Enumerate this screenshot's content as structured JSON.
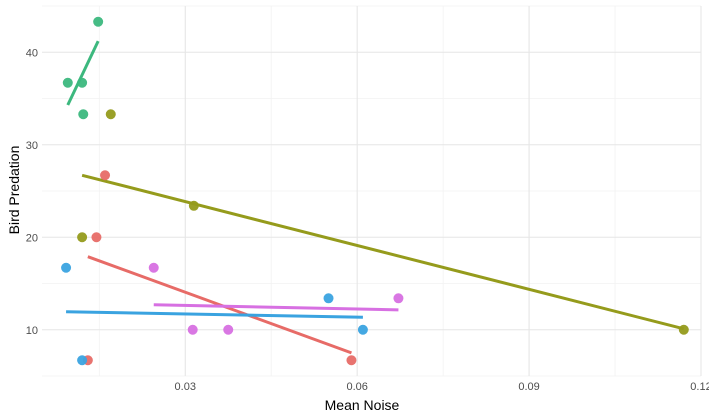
{
  "chart_data": {
    "type": "scatter",
    "xlabel": "Mean Noise",
    "ylabel": "Bird Predation",
    "xlim": [
      0.005,
      0.12
    ],
    "ylim": [
      5,
      45
    ],
    "x_ticks": [
      0.03,
      0.06,
      0.09,
      0.12
    ],
    "x_tick_labels": [
      "0.03",
      "0.06",
      "0.09",
      "0.12"
    ],
    "y_ticks": [
      10,
      20,
      30,
      40
    ],
    "y_tick_labels": [
      "10",
      "20",
      "30",
      "40"
    ],
    "grid": true,
    "legend": "none",
    "series": [
      {
        "color": "#e76b67",
        "points": [
          {
            "x": 0.016,
            "y": 26.7
          },
          {
            "x": 0.0145,
            "y": 20.0
          },
          {
            "x": 0.013,
            "y": 6.7
          },
          {
            "x": 0.059,
            "y": 6.7
          }
        ],
        "fit": {
          "x": [
            0.013,
            0.059
          ],
          "y": [
            17.9,
            7.5
          ]
        }
      },
      {
        "color": "#959b1c",
        "points": [
          {
            "x": 0.017,
            "y": 33.3
          },
          {
            "x": 0.012,
            "y": 20.0
          },
          {
            "x": 0.0315,
            "y": 23.4
          },
          {
            "x": 0.117,
            "y": 10.0
          }
        ],
        "fit": {
          "x": [
            0.012,
            0.117
          ],
          "y": [
            26.7,
            10.1
          ]
        }
      },
      {
        "color": "#3cb87e",
        "points": [
          {
            "x": 0.0148,
            "y": 43.3
          },
          {
            "x": 0.0095,
            "y": 36.7
          },
          {
            "x": 0.012,
            "y": 36.7
          },
          {
            "x": 0.0122,
            "y": 33.3
          }
        ],
        "fit": {
          "x": [
            0.0095,
            0.0148
          ],
          "y": [
            34.3,
            41.2
          ]
        }
      },
      {
        "color": "#3aa3e0",
        "points": [
          {
            "x": 0.0092,
            "y": 16.7
          },
          {
            "x": 0.012,
            "y": 6.7
          },
          {
            "x": 0.055,
            "y": 13.4
          },
          {
            "x": 0.061,
            "y": 10.0
          }
        ],
        "fit": {
          "x": [
            0.0092,
            0.061
          ],
          "y": [
            11.95,
            11.35
          ]
        }
      },
      {
        "color": "#d770e2",
        "points": [
          {
            "x": 0.0245,
            "y": 16.7
          },
          {
            "x": 0.0313,
            "y": 10.0
          },
          {
            "x": 0.0375,
            "y": 10.0
          },
          {
            "x": 0.0672,
            "y": 13.4
          }
        ],
        "fit": {
          "x": [
            0.0245,
            0.0672
          ],
          "y": [
            12.7,
            12.15
          ]
        }
      }
    ]
  }
}
